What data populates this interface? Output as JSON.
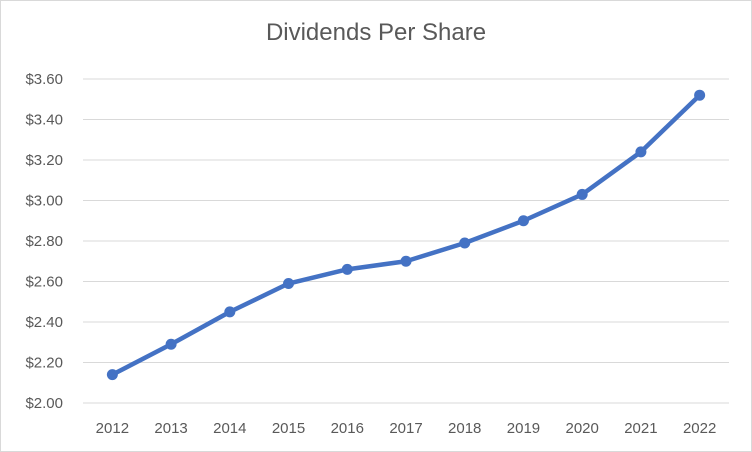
{
  "chart_data": {
    "type": "line",
    "title": "Dividends Per Share",
    "xlabel": "",
    "ylabel": "",
    "categories": [
      "2012",
      "2013",
      "2014",
      "2015",
      "2016",
      "2017",
      "2018",
      "2019",
      "2020",
      "2021",
      "2022"
    ],
    "series": [
      {
        "values": [
          2.14,
          2.29,
          2.45,
          2.59,
          2.66,
          2.7,
          2.79,
          2.9,
          3.03,
          3.24,
          3.52
        ],
        "color": "#4472c4"
      }
    ],
    "ylim": [
      2.0,
      3.6
    ],
    "yticks": [
      2.0,
      2.2,
      2.4,
      2.6,
      2.8,
      3.0,
      3.2,
      3.4,
      3.6
    ],
    "ytick_labels": [
      "$2.00",
      "$2.20",
      "$2.40",
      "$2.60",
      "$2.80",
      "$3.00",
      "$3.20",
      "$3.40",
      "$3.60"
    ],
    "grid": true,
    "legend": "none"
  }
}
